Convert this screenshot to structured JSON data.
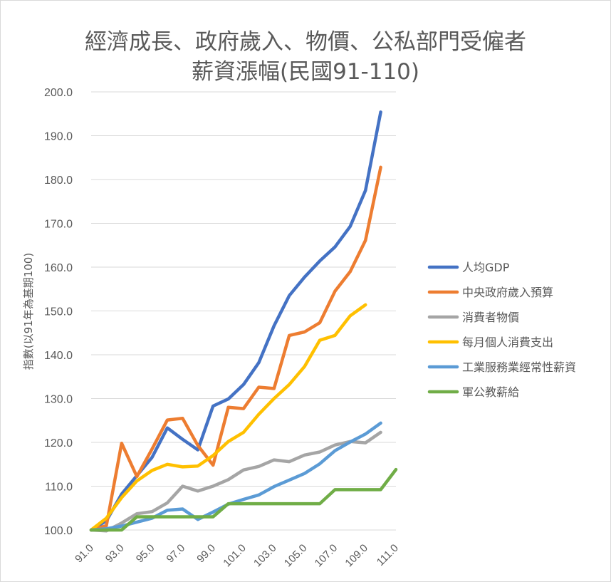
{
  "chart_data": {
    "type": "line",
    "title_line1": "經濟成長、政府歲入、物價、公私部門受僱者",
    "title_line2": "薪資漲幅(民國91-110)",
    "ylabel": "指數(以91年為基期100)",
    "xlabel": "",
    "ylim": [
      100,
      200
    ],
    "y_ticks": [
      "100.0",
      "110.0",
      "120.0",
      "130.0",
      "140.0",
      "150.0",
      "160.0",
      "170.0",
      "180.0",
      "190.0",
      "200.0"
    ],
    "x_ticks": [
      "91.0",
      "93.0",
      "95.0",
      "97.0",
      "99.0",
      "101.0",
      "103.0",
      "105.0",
      "107.0",
      "109.0",
      "111.0"
    ],
    "x_tick_values": [
      91,
      93,
      95,
      97,
      99,
      101,
      103,
      105,
      107,
      109,
      111
    ],
    "xlim": [
      91,
      111
    ],
    "grid": true,
    "legend_position": "right",
    "series": [
      {
        "name": "人均GDP",
        "color": "#4472C4",
        "x": [
          91,
          92,
          93,
          94,
          95,
          96,
          97,
          98,
          99,
          100,
          101,
          102,
          103,
          104,
          105,
          106,
          107,
          108,
          109,
          110
        ],
        "values": [
          100,
          102.1,
          108.2,
          112.4,
          116.6,
          123.3,
          120.7,
          118.3,
          128.3,
          129.9,
          133.2,
          138.2,
          146.6,
          153.5,
          157.7,
          161.4,
          164.6,
          169.3,
          177.5,
          195.4
        ]
      },
      {
        "name": "中央政府歲入預算",
        "color": "#ED7D31",
        "x": [
          91,
          92,
          93,
          94,
          95,
          96,
          97,
          98,
          99,
          100,
          101,
          102,
          103,
          104,
          105,
          106,
          107,
          108,
          109,
          110
        ],
        "values": [
          100,
          101,
          119.8,
          112.2,
          118.5,
          125.1,
          125.5,
          119.3,
          114.8,
          128,
          127.7,
          132.6,
          132.3,
          144.4,
          145.2,
          147.3,
          154.5,
          159,
          166.1,
          182.8
        ]
      },
      {
        "name": "消費者物價",
        "color": "#A5A5A5",
        "x": [
          91,
          92,
          93,
          94,
          95,
          96,
          97,
          98,
          99,
          100,
          101,
          102,
          103,
          104,
          105,
          106,
          107,
          108,
          109,
          110
        ],
        "values": [
          100,
          99.8,
          101.6,
          103.7,
          104.2,
          106.2,
          110,
          108.9,
          110,
          111.5,
          113.7,
          114.5,
          116,
          115.6,
          117.1,
          117.8,
          119.4,
          120.2,
          119.9,
          122.3
        ]
      },
      {
        "name": "每月個人消費支出",
        "color": "#FFC000",
        "x": [
          91,
          92,
          93,
          94,
          95,
          96,
          97,
          98,
          99,
          100,
          101,
          102,
          103,
          104,
          105,
          106,
          107,
          108,
          109
        ],
        "values": [
          100,
          102.7,
          107.4,
          111.2,
          113.6,
          115,
          114.4,
          114.6,
          117,
          120.2,
          122.3,
          126.4,
          130,
          133.2,
          137.3,
          143.3,
          144.4,
          148.9,
          151.4
        ]
      },
      {
        "name": "工業服務業經常性薪資",
        "color": "#5B9BD5",
        "x": [
          91,
          92,
          93,
          94,
          95,
          96,
          97,
          98,
          99,
          100,
          101,
          102,
          103,
          104,
          105,
          106,
          107,
          108,
          109,
          110
        ],
        "values": [
          100,
          100.3,
          100.9,
          101.8,
          102.7,
          104.5,
          104.8,
          102.4,
          104.1,
          105.9,
          107,
          108,
          109.9,
          111.4,
          112.9,
          115.1,
          118.1,
          120.1,
          121.9,
          124.4
        ]
      },
      {
        "name": "軍公教薪給",
        "color": "#70AD47",
        "x": [
          91,
          92,
          93,
          94,
          95,
          96,
          97,
          98,
          99,
          100,
          101,
          102,
          103,
          104,
          105,
          106,
          107,
          108,
          109,
          110,
          111
        ],
        "values": [
          100,
          100,
          100,
          103,
          103,
          103,
          103,
          103,
          103,
          106,
          106,
          106,
          106,
          106,
          106,
          106,
          109.2,
          109.2,
          109.2,
          109.2,
          113.8
        ]
      }
    ]
  }
}
